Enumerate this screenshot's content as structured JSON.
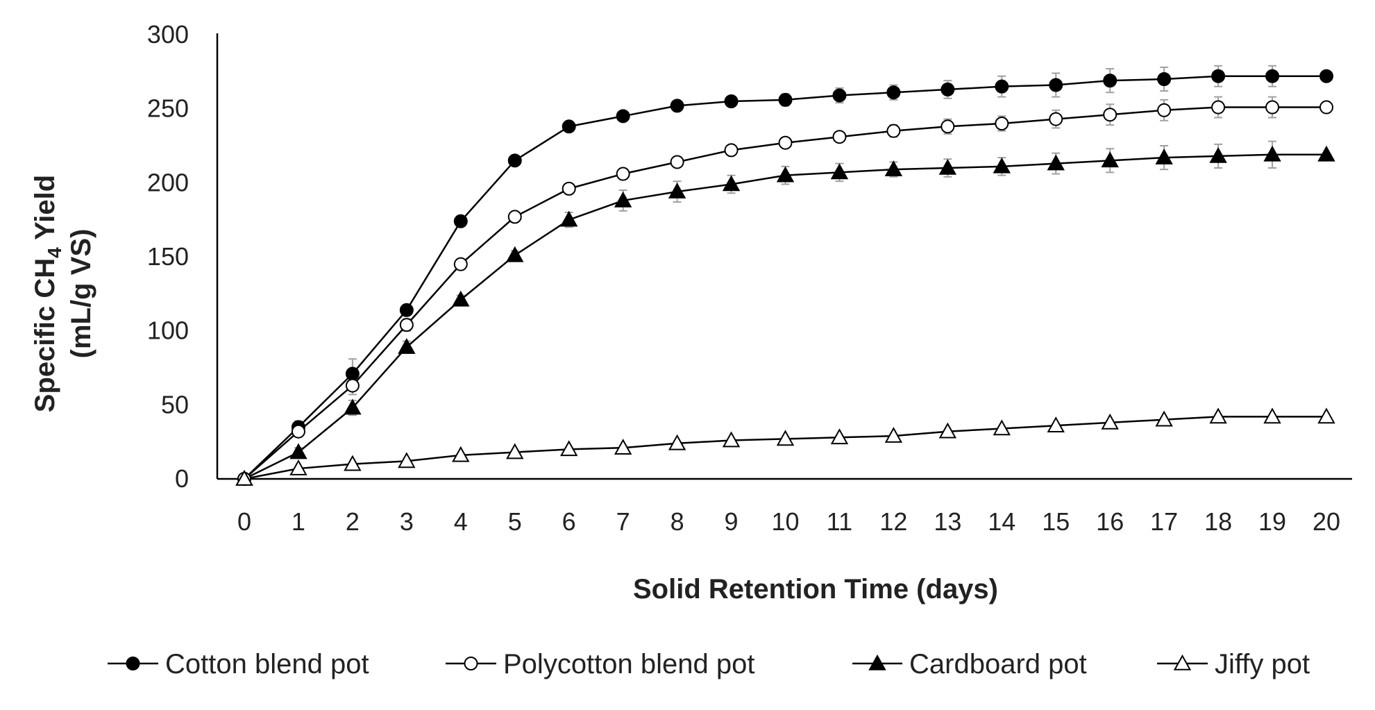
{
  "chart_data": {
    "type": "line",
    "title": "",
    "xlabel": "Solid Retention Time (days)",
    "ylabel_line1_prefix": "Specific CH",
    "ylabel_line1_sub": "4",
    "ylabel_line1_suffix": " Yield",
    "ylabel_line2": "(mL/g VS)",
    "x": [
      0,
      1,
      2,
      3,
      4,
      5,
      6,
      7,
      8,
      9,
      10,
      11,
      12,
      13,
      14,
      15,
      16,
      17,
      18,
      19,
      20
    ],
    "xlim": [
      0,
      20
    ],
    "ylim": [
      0,
      300
    ],
    "yticks": [
      0,
      50,
      100,
      150,
      200,
      250,
      300
    ],
    "grid": false,
    "legend_position": "bottom",
    "series": [
      {
        "name": "Cotton blend pot",
        "marker": "filled-circle",
        "values": [
          0,
          35,
          71,
          114,
          174,
          215,
          238,
          245,
          252,
          255,
          256,
          259,
          261,
          263,
          265,
          266,
          269,
          270,
          272,
          272,
          272
        ],
        "errors": [
          0,
          4,
          10,
          3,
          3,
          3,
          3,
          3,
          3,
          3,
          4,
          5,
          5,
          6,
          7,
          8,
          8,
          8,
          7,
          7,
          0
        ]
      },
      {
        "name": "Polycotton blend pot",
        "marker": "open-circle",
        "values": [
          0,
          32,
          63,
          104,
          145,
          177,
          196,
          206,
          214,
          222,
          227,
          231,
          235,
          238,
          240,
          243,
          246,
          249,
          251,
          251,
          251
        ],
        "errors": [
          0,
          3,
          6,
          4,
          3,
          3,
          3,
          3,
          3,
          3,
          3,
          3,
          4,
          5,
          5,
          6,
          7,
          7,
          7,
          7,
          0
        ]
      },
      {
        "name": "Cardboard pot",
        "marker": "filled-triangle",
        "values": [
          0,
          18,
          48,
          89,
          121,
          151,
          175,
          188,
          194,
          199,
          205,
          207,
          209,
          210,
          211,
          213,
          215,
          217,
          218,
          219,
          219
        ],
        "errors": [
          0,
          3,
          5,
          4,
          3,
          3,
          5,
          7,
          7,
          6,
          6,
          6,
          5,
          6,
          6,
          7,
          8,
          8,
          8,
          9,
          0
        ]
      },
      {
        "name": "Jiffy pot",
        "marker": "open-triangle",
        "values": [
          0,
          7,
          10,
          12,
          16,
          18,
          20,
          21,
          24,
          26,
          27,
          28,
          29,
          32,
          34,
          36,
          38,
          40,
          42,
          42,
          42
        ],
        "errors": [
          0,
          1,
          1,
          1,
          1,
          1,
          1,
          1,
          1,
          1,
          1,
          1,
          1,
          1,
          1,
          1,
          1,
          1,
          1,
          1,
          0
        ]
      }
    ]
  }
}
